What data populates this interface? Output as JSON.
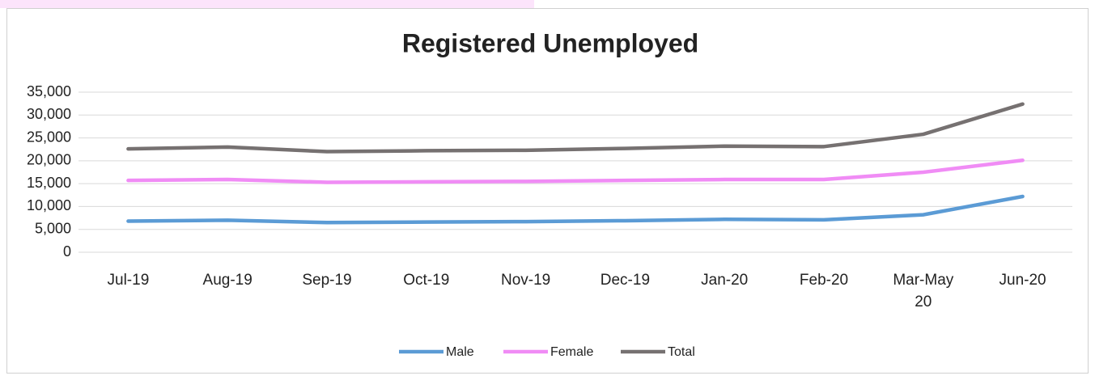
{
  "chart_data": {
    "type": "line",
    "title": "Registered Unemployed",
    "categories": [
      "Jul-19",
      "Aug-19",
      "Sep-19",
      "Oct-19",
      "Nov-19",
      "Dec-19",
      "Jan-20",
      "Feb-20",
      "Mar-May 20",
      "Jun-20"
    ],
    "series": [
      {
        "name": "Male",
        "color": "#5b9bd5",
        "values": [
          6800,
          7000,
          6500,
          6600,
          6700,
          6900,
          7200,
          7100,
          8200,
          12200
        ]
      },
      {
        "name": "Female",
        "color": "#f08cf5",
        "values": [
          15700,
          15900,
          15300,
          15400,
          15500,
          15700,
          15900,
          15900,
          17500,
          20100
        ]
      },
      {
        "name": "Total",
        "color": "#767171",
        "values": [
          22600,
          23000,
          22000,
          22200,
          22300,
          22700,
          23200,
          23100,
          25800,
          32400
        ]
      }
    ],
    "ylim": [
      0,
      35000
    ],
    "yticks": [
      0,
      {
        "value": 5000,
        "label": "5,000"
      },
      {
        "value": 10000,
        "label": "10,000"
      },
      {
        "value": 15000,
        "label": "15,000"
      },
      {
        "value": 20000,
        "label": "20,000"
      },
      {
        "value": 25000,
        "label": "25,000"
      },
      {
        "value": 30000,
        "label": "30,000"
      },
      {
        "value": 35000,
        "label": "35,000"
      }
    ],
    "grid": true,
    "legend": "bottom"
  }
}
